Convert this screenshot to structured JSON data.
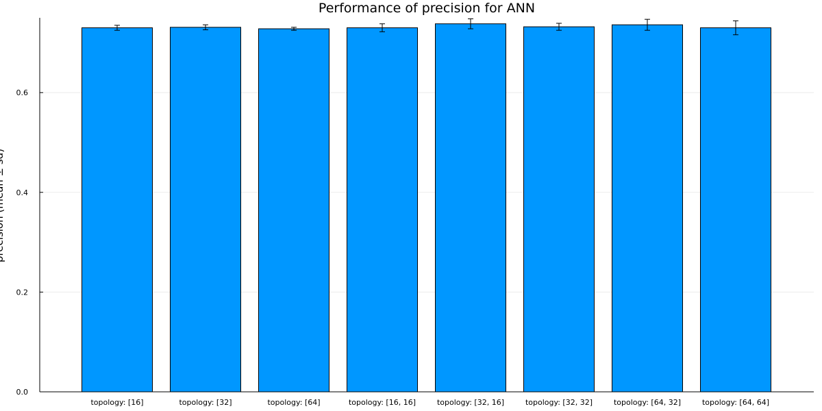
{
  "chart_data": {
    "type": "bar",
    "title": "Performance of precision for ANN",
    "xlabel": "",
    "ylabel": "precision (mean ± sd)",
    "categories": [
      "topology: [16]",
      "topology: [32]",
      "topology: [64]",
      "topology: [16, 16]",
      "topology: [32, 16]",
      "topology: [32, 32]",
      "topology: [64, 32]",
      "topology: [64, 64]"
    ],
    "values": [
      0.73,
      0.731,
      0.728,
      0.73,
      0.738,
      0.732,
      0.736,
      0.73
    ],
    "errors": [
      0.005,
      0.005,
      0.003,
      0.008,
      0.01,
      0.007,
      0.011,
      0.014
    ],
    "ylim": [
      0,
      0.75
    ],
    "yticks": [
      0.0,
      0.2,
      0.4,
      0.6
    ],
    "ytick_labels": [
      "0.0",
      "0.2",
      "0.4",
      "0.6"
    ],
    "grid": true,
    "legend": "none",
    "colors": {
      "bar": "#0097FF",
      "bar_edge": "#000000",
      "grid": "#ebebeb",
      "error": "#000000"
    }
  }
}
